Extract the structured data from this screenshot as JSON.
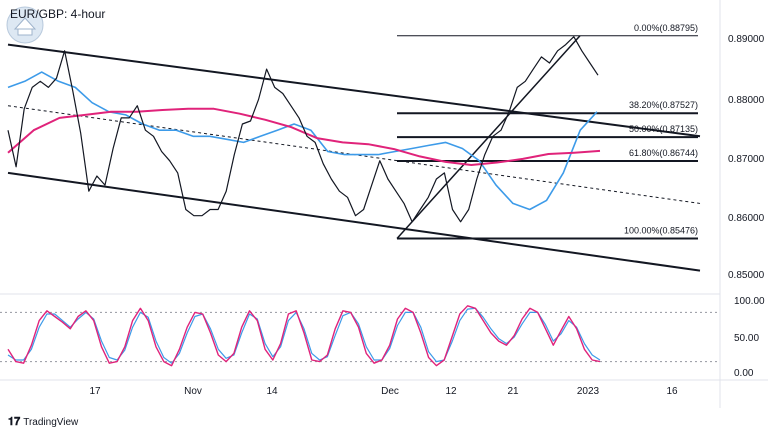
{
  "header": {
    "title": "EUR/GBP: 4-hour"
  },
  "footer": {
    "brand": "TradingView"
  },
  "chart_data": [
    {
      "type": "line",
      "title": "EUR/GBP: 4-hour",
      "x_ticks": [
        "17",
        "Nov",
        "14",
        "Dec",
        "12",
        "21",
        "2023",
        "16"
      ],
      "y_ticks": [
        "0.89000",
        "0.88000",
        "0.87000",
        "0.86000",
        "0.85000"
      ],
      "ylim": [
        0.846,
        0.8925
      ],
      "series": [
        {
          "values": [
            0.8725,
            0.8665,
            0.876,
            0.8795,
            0.8805,
            0.8795,
            0.881,
            0.8855,
            0.879,
            0.872,
            0.8625,
            0.865,
            0.8635,
            0.8695,
            0.8745,
            0.8745,
            0.8765,
            0.8725,
            0.8715,
            0.869,
            0.8675,
            0.8655,
            0.8595,
            0.8585,
            0.8585,
            0.8595,
            0.8595,
            0.8625,
            0.8685,
            0.8735,
            0.874,
            0.8775,
            0.8825,
            0.8795,
            0.8785,
            0.8765,
            0.8745,
            0.8715,
            0.8705,
            0.867,
            0.8645,
            0.8625,
            0.8615,
            0.8585,
            0.8595,
            0.8635,
            0.8675,
            0.8645,
            0.8625,
            0.8605,
            0.8575,
            0.8595,
            0.8615,
            0.8645,
            0.8655,
            0.8595,
            0.8575,
            0.8595,
            0.8645,
            0.8685,
            0.8715,
            0.8725,
            0.8755,
            0.8795,
            0.8805,
            0.8825,
            0.8845,
            0.8835,
            0.8855,
            0.8865,
            0.8878,
            0.8855,
            0.8835,
            0.8815
          ]
        },
        {
          "values": [
            0.8795,
            0.8805,
            0.882,
            0.8805,
            0.8795,
            0.877,
            0.8755,
            0.875,
            0.8735,
            0.8725,
            0.8725,
            0.8715,
            0.8715,
            0.871,
            0.8705,
            0.8715,
            0.8725,
            0.8735,
            0.8725,
            0.869,
            0.8685,
            0.8685,
            0.8685,
            0.869,
            0.8695,
            0.87,
            0.8705,
            0.8695,
            0.8675,
            0.8635,
            0.8605,
            0.8595,
            0.861,
            0.8655,
            0.8725,
            0.8755
          ]
        },
        {
          "values": [
            0.8688,
            0.8725,
            0.8745,
            0.875,
            0.8755,
            0.8755,
            0.8758,
            0.876,
            0.876,
            0.8752,
            0.8742,
            0.873,
            0.8712,
            0.8705,
            0.8702,
            0.8694,
            0.8682,
            0.8673,
            0.8668,
            0.8672,
            0.8678,
            0.8686,
            0.8688,
            0.8691
          ]
        }
      ],
      "fibonacci": [
        {
          "label": "0.00%(0.88795)",
          "value": 0.88795
        },
        {
          "label": "38.20%(0.87527)",
          "value": 0.87527
        },
        {
          "label": "50.00%(0.87135)",
          "value": 0.87135
        },
        {
          "label": "61.80%(0.86744)",
          "value": 0.86744
        },
        {
          "label": "100.00%(0.85476)",
          "value": 0.85476
        }
      ],
      "channel": {
        "upper": [
          [
            0.8865,
            0.8715
          ]
        ],
        "lower": [
          [
            0.8655,
            0.8495
          ]
        ],
        "mid": [
          [
            0.8765,
            0.8605
          ]
        ]
      },
      "colors": {
        "price": "#131722",
        "ma_fast": "#3d9be9",
        "ma_slow": "#e0237a"
      },
      "grid": false
    },
    {
      "type": "line",
      "title": "",
      "y_ticks": [
        "100.00",
        "50.00",
        "0.00"
      ],
      "ylim": [
        0,
        100
      ],
      "levels": [
        80,
        20
      ],
      "series": [
        {
          "values": [
            35,
            20,
            18,
            40,
            70,
            82,
            75,
            68,
            60,
            75,
            82,
            70,
            38,
            18,
            20,
            38,
            70,
            85,
            70,
            38,
            20,
            15,
            35,
            62,
            80,
            78,
            55,
            28,
            20,
            30,
            62,
            82,
            70,
            35,
            22,
            42,
            78,
            82,
            55,
            22,
            20,
            28,
            60,
            82,
            80,
            62,
            30,
            18,
            22,
            40,
            72,
            85,
            80,
            55,
            25,
            15,
            22,
            50,
            78,
            88,
            85,
            70,
            55,
            45,
            40,
            52,
            72,
            85,
            80,
            60,
            40,
            58,
            75,
            60,
            35,
            22,
            20
          ]
        },
        {
          "values": [
            28,
            22,
            22,
            35,
            62,
            78,
            78,
            70,
            62,
            72,
            80,
            72,
            45,
            25,
            22,
            34,
            62,
            80,
            74,
            45,
            25,
            18,
            30,
            55,
            75,
            78,
            60,
            35,
            24,
            28,
            55,
            78,
            72,
            42,
            26,
            38,
            70,
            80,
            60,
            30,
            22,
            26,
            52,
            76,
            80,
            66,
            38,
            22,
            22,
            36,
            64,
            80,
            80,
            62,
            32,
            20,
            22,
            44,
            70,
            84,
            85,
            74,
            60,
            48,
            42,
            50,
            66,
            80,
            80,
            65,
            45,
            54,
            70,
            62,
            42,
            28,
            22
          ]
        }
      ]
    }
  ]
}
